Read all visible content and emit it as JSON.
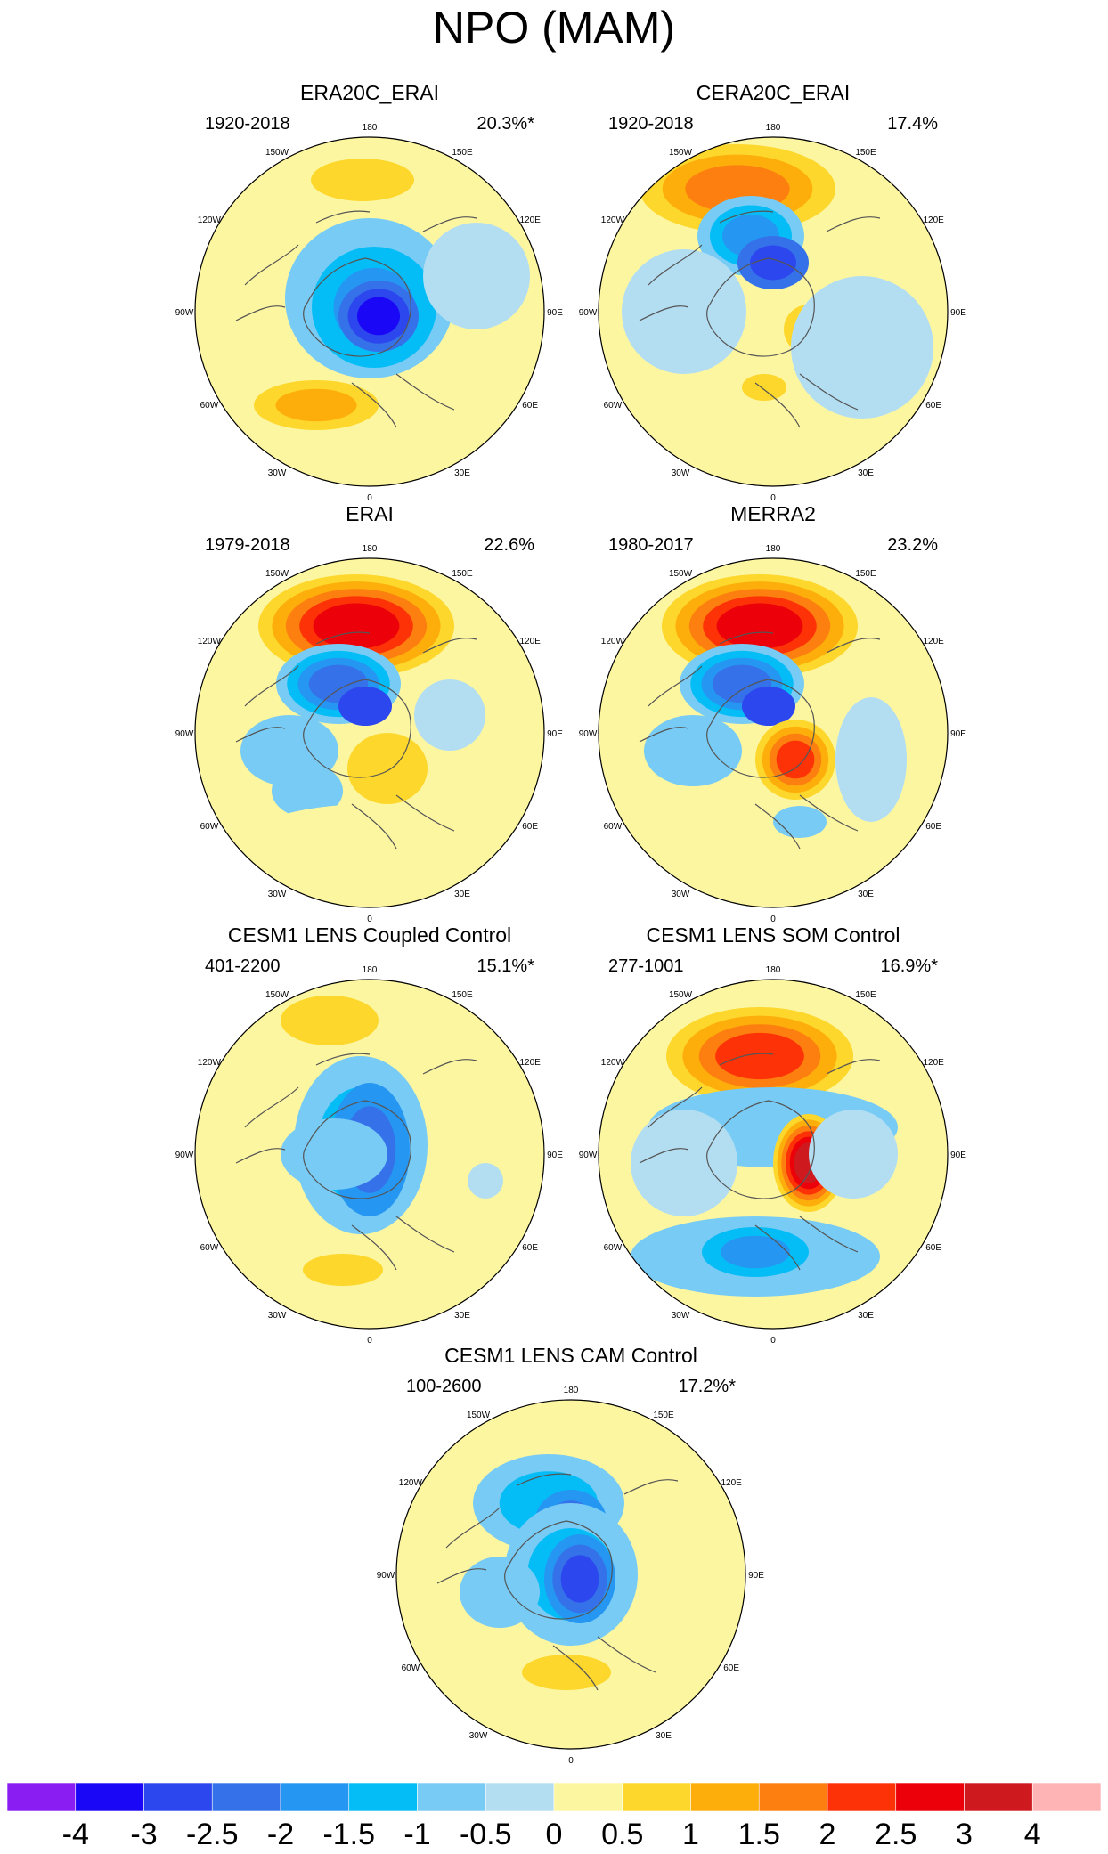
{
  "title": "NPO (MAM)",
  "colors": {
    "levels": [
      "#8a1df2",
      "#1a07f5",
      "#2c47ee",
      "#3572ea",
      "#2596f2",
      "#04bdf6",
      "#77cbf4",
      "#b3def2",
      "#fdf6a1",
      "#fdd72b",
      "#fdae0b",
      "#fd7f0f",
      "#fd3307",
      "#ec0009",
      "#ce1a1f",
      "#feb4b4"
    ]
  },
  "lon_labels": [
    "180",
    "150W",
    "150E",
    "120W",
    "120E",
    "90W",
    "90E",
    "60W",
    "60E",
    "30W",
    "30E",
    "0"
  ],
  "panels": [
    {
      "title": "ERA20C_ERAI",
      "range": "1920-2018",
      "pct": "20.3%*"
    },
    {
      "title": "CERA20C_ERAI",
      "range": "1920-2018",
      "pct": "17.4%"
    },
    {
      "title": "ERAI",
      "range": "1979-2018",
      "pct": "22.6%"
    },
    {
      "title": "MERRA2",
      "range": "1980-2017",
      "pct": "23.2%"
    },
    {
      "title": "CESM1 LENS Coupled Control",
      "range": "401-2200",
      "pct": "15.1%*"
    },
    {
      "title": "CESM1 LENS SOM Control",
      "range": "277-1001",
      "pct": "16.9%*"
    },
    {
      "title": "CESM1 LENS CAM Control",
      "range": "100-2600",
      "pct": "17.2%*"
    }
  ],
  "colorbar": {
    "ticks": [
      "-4",
      "-3",
      "-2.5",
      "-2",
      "-1.5",
      "-1",
      "-0.5",
      "0",
      "0.5",
      "1",
      "1.5",
      "2",
      "2.5",
      "3",
      "4"
    ]
  }
}
